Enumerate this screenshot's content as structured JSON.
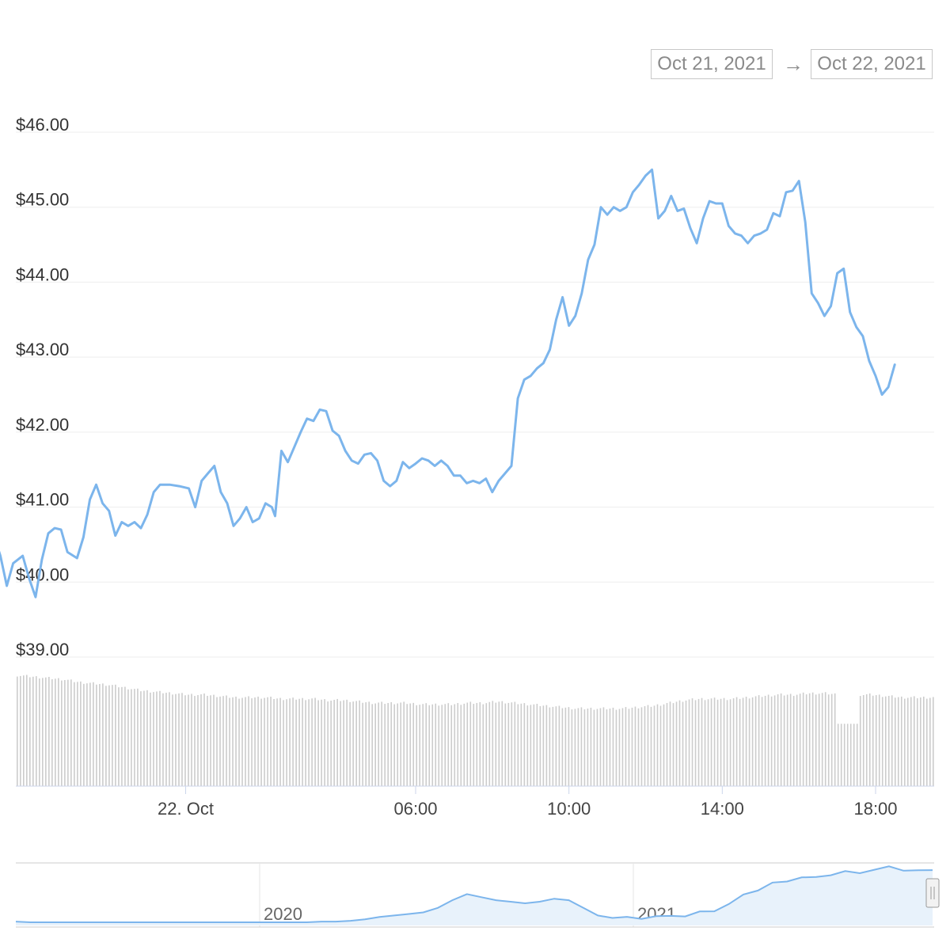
{
  "range_selector": {
    "from": "Oct 21, 2021",
    "arrow": "→",
    "to": "Oct 22, 2021"
  },
  "colors": {
    "price_line": "#7cb5ec",
    "volume_bar": "#cccccc",
    "grid": "#eeeeee",
    "navigator_area": "#e8f2fb",
    "navigator_border": "#cccccc"
  },
  "chart_data": [
    {
      "type": "line",
      "series": [
        {
          "name": "",
          "color": "#7cb5ec"
        }
      ],
      "x_range": [
        "Oct 21 18:50",
        "Oct 22 19:25"
      ],
      "ylim": [
        39.0,
        46.0
      ],
      "y_ticks": [
        "$39.00",
        "$40.00",
        "$41.00",
        "$42.00",
        "$43.00",
        "$44.00",
        "$45.00",
        "$46.00"
      ],
      "x_ticks": [
        "22. Oct",
        "06:00",
        "10:00",
        "14:00",
        "18:00"
      ],
      "grid": true,
      "price_points": [
        [
          "Oct 21 18:50",
          40.55
        ],
        [
          "Oct 21 19:00",
          40.62
        ],
        [
          "Oct 21 19:10",
          40.35
        ],
        [
          "Oct 21 19:20",
          39.95
        ],
        [
          "Oct 21 19:30",
          40.25
        ],
        [
          "Oct 21 19:45",
          40.35
        ],
        [
          "Oct 21 19:55",
          40.05
        ],
        [
          "Oct 21 20:05",
          39.8
        ],
        [
          "Oct 21 20:15",
          40.3
        ],
        [
          "Oct 21 20:25",
          40.65
        ],
        [
          "Oct 21 20:35",
          40.72
        ],
        [
          "Oct 21 20:45",
          40.7
        ],
        [
          "Oct 21 20:55",
          40.4
        ],
        [
          "Oct 21 21:10",
          40.32
        ],
        [
          "Oct 21 21:20",
          40.6
        ],
        [
          "Oct 21 21:30",
          41.1
        ],
        [
          "Oct 21 21:40",
          41.3
        ],
        [
          "Oct 21 21:50",
          41.05
        ],
        [
          "Oct 21 22:00",
          40.95
        ],
        [
          "Oct 21 22:10",
          40.62
        ],
        [
          "Oct 21 22:20",
          40.8
        ],
        [
          "Oct 21 22:30",
          40.75
        ],
        [
          "Oct 21 22:40",
          40.8
        ],
        [
          "Oct 21 22:50",
          40.72
        ],
        [
          "Oct 21 23:00",
          40.9
        ],
        [
          "Oct 21 23:10",
          41.2
        ],
        [
          "Oct 21 23:20",
          41.3
        ],
        [
          "Oct 21 23:35",
          41.3
        ],
        [
          "Oct 21 23:50",
          41.28
        ],
        [
          "Oct 22 00:05",
          41.25
        ],
        [
          "Oct 22 00:15",
          41.0
        ],
        [
          "Oct 22 00:25",
          41.35
        ],
        [
          "Oct 22 00:35",
          41.45
        ],
        [
          "Oct 22 00:45",
          41.55
        ],
        [
          "Oct 22 00:55",
          41.2
        ],
        [
          "Oct 22 01:05",
          41.05
        ],
        [
          "Oct 22 01:15",
          40.75
        ],
        [
          "Oct 22 01:25",
          40.85
        ],
        [
          "Oct 22 01:35",
          41.0
        ],
        [
          "Oct 22 01:45",
          40.8
        ],
        [
          "Oct 22 01:55",
          40.85
        ],
        [
          "Oct 22 02:05",
          41.05
        ],
        [
          "Oct 22 02:15",
          41.0
        ],
        [
          "Oct 22 02:20",
          40.88
        ],
        [
          "Oct 22 02:30",
          41.75
        ],
        [
          "Oct 22 02:40",
          41.6
        ],
        [
          "Oct 22 02:50",
          41.8
        ],
        [
          "Oct 22 03:00",
          42.0
        ],
        [
          "Oct 22 03:10",
          42.18
        ],
        [
          "Oct 22 03:20",
          42.15
        ],
        [
          "Oct 22 03:30",
          42.3
        ],
        [
          "Oct 22 03:40",
          42.28
        ],
        [
          "Oct 22 03:50",
          42.02
        ],
        [
          "Oct 22 04:00",
          41.95
        ],
        [
          "Oct 22 04:10",
          41.75
        ],
        [
          "Oct 22 04:20",
          41.62
        ],
        [
          "Oct 22 04:30",
          41.58
        ],
        [
          "Oct 22 04:40",
          41.7
        ],
        [
          "Oct 22 04:50",
          41.72
        ],
        [
          "Oct 22 05:00",
          41.62
        ],
        [
          "Oct 22 05:10",
          41.35
        ],
        [
          "Oct 22 05:20",
          41.28
        ],
        [
          "Oct 22 05:30",
          41.35
        ],
        [
          "Oct 22 05:40",
          41.6
        ],
        [
          "Oct 22 05:50",
          41.52
        ],
        [
          "Oct 22 06:00",
          41.58
        ],
        [
          "Oct 22 06:10",
          41.65
        ],
        [
          "Oct 22 06:20",
          41.62
        ],
        [
          "Oct 22 06:30",
          41.55
        ],
        [
          "Oct 22 06:40",
          41.62
        ],
        [
          "Oct 22 06:50",
          41.55
        ],
        [
          "Oct 22 07:00",
          41.42
        ],
        [
          "Oct 22 07:10",
          41.42
        ],
        [
          "Oct 22 07:20",
          41.32
        ],
        [
          "Oct 22 07:30",
          41.35
        ],
        [
          "Oct 22 07:40",
          41.32
        ],
        [
          "Oct 22 07:50",
          41.38
        ],
        [
          "Oct 22 08:00",
          41.2
        ],
        [
          "Oct 22 08:10",
          41.35
        ],
        [
          "Oct 22 08:20",
          41.45
        ],
        [
          "Oct 22 08:30",
          41.55
        ],
        [
          "Oct 22 08:40",
          42.45
        ],
        [
          "Oct 22 08:50",
          42.7
        ],
        [
          "Oct 22 09:00",
          42.75
        ],
        [
          "Oct 22 09:10",
          42.85
        ],
        [
          "Oct 22 09:20",
          42.92
        ],
        [
          "Oct 22 09:30",
          43.1
        ],
        [
          "Oct 22 09:40",
          43.5
        ],
        [
          "Oct 22 09:50",
          43.8
        ],
        [
          "Oct 22 10:00",
          43.42
        ],
        [
          "Oct 22 10:10",
          43.55
        ],
        [
          "Oct 22 10:20",
          43.85
        ],
        [
          "Oct 22 10:30",
          44.3
        ],
        [
          "Oct 22 10:40",
          44.5
        ],
        [
          "Oct 22 10:50",
          45.0
        ],
        [
          "Oct 22 11:00",
          44.9
        ],
        [
          "Oct 22 11:10",
          45.0
        ],
        [
          "Oct 22 11:20",
          44.95
        ],
        [
          "Oct 22 11:30",
          45.0
        ],
        [
          "Oct 22 11:40",
          45.2
        ],
        [
          "Oct 22 11:50",
          45.3
        ],
        [
          "Oct 22 12:00",
          45.42
        ],
        [
          "Oct 22 12:10",
          45.5
        ],
        [
          "Oct 22 12:20",
          44.85
        ],
        [
          "Oct 22 12:30",
          44.95
        ],
        [
          "Oct 22 12:40",
          45.15
        ],
        [
          "Oct 22 12:50",
          44.95
        ],
        [
          "Oct 22 13:00",
          44.98
        ],
        [
          "Oct 22 13:10",
          44.72
        ],
        [
          "Oct 22 13:20",
          44.52
        ],
        [
          "Oct 22 13:30",
          44.85
        ],
        [
          "Oct 22 13:40",
          45.08
        ],
        [
          "Oct 22 13:50",
          45.05
        ],
        [
          "Oct 22 14:00",
          45.05
        ],
        [
          "Oct 22 14:10",
          44.75
        ],
        [
          "Oct 22 14:20",
          44.65
        ],
        [
          "Oct 22 14:30",
          44.62
        ],
        [
          "Oct 22 14:40",
          44.52
        ],
        [
          "Oct 22 14:50",
          44.62
        ],
        [
          "Oct 22 15:00",
          44.65
        ],
        [
          "Oct 22 15:10",
          44.7
        ],
        [
          "Oct 22 15:20",
          44.92
        ],
        [
          "Oct 22 15:30",
          44.88
        ],
        [
          "Oct 22 15:40",
          45.2
        ],
        [
          "Oct 22 15:50",
          45.22
        ],
        [
          "Oct 22 16:00",
          45.35
        ],
        [
          "Oct 22 16:10",
          44.8
        ],
        [
          "Oct 22 16:20",
          43.85
        ],
        [
          "Oct 22 16:30",
          43.72
        ],
        [
          "Oct 22 16:40",
          43.55
        ],
        [
          "Oct 22 16:50",
          43.68
        ],
        [
          "Oct 22 17:00",
          44.12
        ],
        [
          "Oct 22 17:10",
          44.18
        ],
        [
          "Oct 22 17:20",
          43.6
        ],
        [
          "Oct 22 17:30",
          43.4
        ],
        [
          "Oct 22 17:40",
          43.28
        ],
        [
          "Oct 22 17:50",
          42.95
        ],
        [
          "Oct 22 18:00",
          42.75
        ],
        [
          "Oct 22 18:10",
          42.5
        ],
        [
          "Oct 22 18:20",
          42.6
        ],
        [
          "Oct 22 18:30",
          42.9
        ]
      ]
    },
    {
      "type": "bar",
      "series": [
        {
          "name": "",
          "color": "#cccccc"
        }
      ],
      "volume_relative": [
        0.8,
        0.79,
        0.78,
        0.77,
        0.75,
        0.74,
        0.73,
        0.71,
        0.69,
        0.68,
        0.67,
        0.66,
        0.66,
        0.65,
        0.64,
        0.64,
        0.64,
        0.63,
        0.63,
        0.63,
        0.62,
        0.62,
        0.61,
        0.6,
        0.6,
        0.6,
        0.59,
        0.59,
        0.59,
        0.6,
        0.6,
        0.61,
        0.6,
        0.59,
        0.58,
        0.57,
        0.56,
        0.56,
        0.56,
        0.56,
        0.57,
        0.58,
        0.6,
        0.62,
        0.63,
        0.63,
        0.63,
        0.64,
        0.65,
        0.66,
        0.66,
        0.67,
        0.67,
        0.66,
        0.66,
        0.66,
        0.65,
        0.64,
        0.64,
        0.64
      ],
      "volume_dip_fraction": 0.905,
      "volume_dip_relative": 0.45
    },
    {
      "type": "area",
      "series": [
        {
          "name": "",
          "color": "#7cb5ec"
        }
      ],
      "x_ticks": [
        "2020",
        "2021"
      ],
      "navigator_profile": [
        0.02,
        0.01,
        0.01,
        0.01,
        0.01,
        0.01,
        0.01,
        0.01,
        0.01,
        0.01,
        0.01,
        0.01,
        0.01,
        0.01,
        0.01,
        0.01,
        0.01,
        0.01,
        0.01,
        0.01,
        0.01,
        0.02,
        0.02,
        0.03,
        0.05,
        0.08,
        0.1,
        0.12,
        0.14,
        0.2,
        0.3,
        0.38,
        0.34,
        0.3,
        0.28,
        0.26,
        0.28,
        0.32,
        0.3,
        0.2,
        0.1,
        0.08,
        0.07,
        0.08,
        0.09,
        0.07,
        0.1,
        0.14,
        0.18,
        0.25,
        0.35,
        0.44,
        0.52,
        0.57,
        0.6,
        0.58,
        0.64,
        0.67,
        0.68,
        0.7,
        0.72,
        0.7,
        0.68,
        0.72
      ]
    }
  ]
}
